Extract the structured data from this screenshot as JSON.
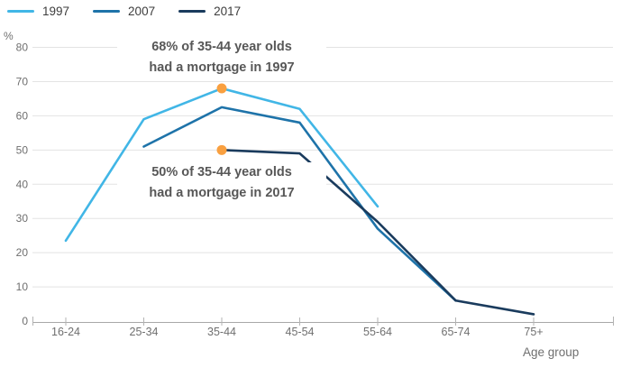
{
  "chart_data": {
    "type": "line",
    "title": "",
    "categories": [
      "16-24",
      "25-34",
      "35-44",
      "45-54",
      "55-64",
      "65-74",
      "75+"
    ],
    "series": [
      {
        "name": "1997",
        "color": "#41b6e6",
        "values": [
          23.5,
          59,
          68,
          62,
          33.5,
          null,
          null
        ]
      },
      {
        "name": "2007",
        "color": "#1e73a9",
        "values": [
          null,
          51,
          62.5,
          58,
          27,
          6,
          null
        ]
      },
      {
        "name": "2017",
        "color": "#1a3b5d",
        "values": [
          null,
          null,
          50,
          49,
          29,
          6,
          2
        ]
      }
    ],
    "markers": [
      {
        "series": "1997",
        "category": "35-44",
        "value": 68,
        "color": "#f9a040"
      },
      {
        "series": "2017",
        "category": "35-44",
        "value": 50,
        "color": "#f9a040"
      }
    ],
    "annotations": [
      {
        "line1": "68% of 35-44 year olds",
        "line2": "had a mortgage in 1997"
      },
      {
        "line1": "50% of 35-44 year olds",
        "line2": "had a mortgage in 2017"
      }
    ],
    "xlabel": "Age group",
    "ylabel": "%",
    "ylim": [
      0,
      80
    ],
    "y_ticks": [
      0,
      10,
      20,
      30,
      40,
      50,
      60,
      70,
      80
    ],
    "grid": true,
    "legend_position": "top-left",
    "colors": {
      "grid": "#e3e3e3",
      "axis": "#a8a8a8",
      "tick": "#b3b3b3",
      "axis_text": "#6f6f6f",
      "annotation_text": "#575757"
    }
  }
}
